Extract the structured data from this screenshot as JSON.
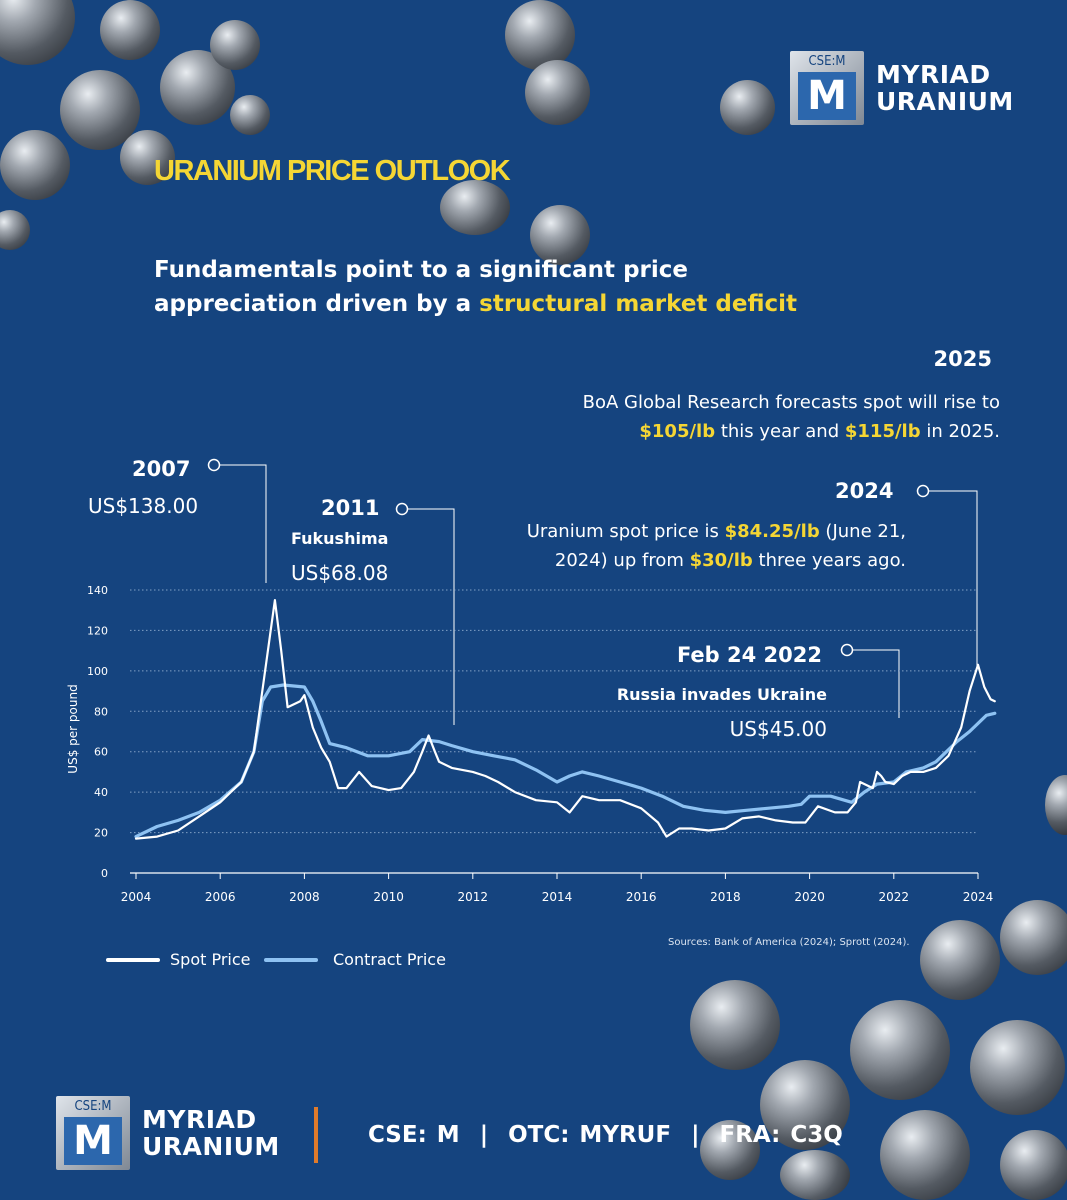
{
  "brand": {
    "ticker_box": "CSE:M",
    "box_letter": "M",
    "name_line1": "MYRIAD",
    "name_line2": "URANIUM"
  },
  "title": "URANIUM PRICE OUTLOOK",
  "subtitle": {
    "line1": "Fundamentals point to a significant price",
    "line2_plain": "appreciation driven by a ",
    "line2_highlight": "structural market deficit"
  },
  "annotations": {
    "y2025": {
      "year": "2025",
      "t1": "BoA Global Research forecasts spot will rise to",
      "p1": "$105/lb",
      "t2": " this year and ",
      "p2": "$115/lb",
      "t3": " in 2025."
    },
    "y2024": {
      "year": "2024",
      "t1": "Uranium spot price is ",
      "p1": "$84.25/lb",
      "t2": " (June 21,",
      "t3": "2024) up from ",
      "p2": "$30/lb",
      "t4": " three years ago."
    },
    "y2007": {
      "year": "2007",
      "price": "US$138.00"
    },
    "y2011": {
      "year": "2011",
      "event": "Fukushima",
      "price": "US$68.08"
    },
    "y2022": {
      "year": "Feb 24 2022",
      "event": "Russia invades Ukraine",
      "price": "US$45.00"
    }
  },
  "legend": {
    "spot": "Spot Price",
    "contract": "Contract Price"
  },
  "sources": "Sources: Bank of America (2024); Sprott (2024).",
  "footer": {
    "tickers": "CSE: M  |  OTC: MYRUF  |  FRA: C3Q"
  },
  "colors": {
    "background": "#15447f",
    "accent_yellow": "#f5d634",
    "spot_line": "#ffffff",
    "contract_line": "#8ec2f2",
    "separator": "#e07b2b"
  },
  "chart_data": {
    "type": "line",
    "ylabel": "US$ per pound",
    "xlim": [
      2004,
      2024
    ],
    "ylim": [
      0,
      140
    ],
    "x_ticks": [
      "2004",
      "2006",
      "2008",
      "2010",
      "2012",
      "2014",
      "2016",
      "2018",
      "2020",
      "2022",
      "2024"
    ],
    "y_ticks": [
      "0",
      "20",
      "40",
      "60",
      "80",
      "100",
      "120",
      "140"
    ],
    "grid": "horizontal dotted",
    "series": [
      {
        "name": "Spot Price",
        "color": "#ffffff",
        "points": [
          [
            2004.0,
            17
          ],
          [
            2004.5,
            18
          ],
          [
            2005.0,
            21
          ],
          [
            2005.5,
            28
          ],
          [
            2006.0,
            35
          ],
          [
            2006.5,
            45
          ],
          [
            2006.8,
            60
          ],
          [
            2007.0,
            90
          ],
          [
            2007.2,
            120
          ],
          [
            2007.3,
            135
          ],
          [
            2007.45,
            110
          ],
          [
            2007.6,
            82
          ],
          [
            2007.9,
            85
          ],
          [
            2008.0,
            88
          ],
          [
            2008.2,
            72
          ],
          [
            2008.4,
            62
          ],
          [
            2008.6,
            55
          ],
          [
            2008.8,
            42
          ],
          [
            2009.0,
            42
          ],
          [
            2009.3,
            50
          ],
          [
            2009.6,
            43
          ],
          [
            2010.0,
            41
          ],
          [
            2010.3,
            42
          ],
          [
            2010.6,
            50
          ],
          [
            2010.8,
            60
          ],
          [
            2010.95,
            68
          ],
          [
            2011.1,
            60
          ],
          [
            2011.2,
            55
          ],
          [
            2011.5,
            52
          ],
          [
            2012.0,
            50
          ],
          [
            2012.3,
            48
          ],
          [
            2012.6,
            45
          ],
          [
            2013.0,
            40
          ],
          [
            2013.5,
            36
          ],
          [
            2014.0,
            35
          ],
          [
            2014.3,
            30
          ],
          [
            2014.6,
            38
          ],
          [
            2015.0,
            36
          ],
          [
            2015.5,
            36
          ],
          [
            2016.0,
            32
          ],
          [
            2016.4,
            25
          ],
          [
            2016.6,
            18
          ],
          [
            2016.9,
            22
          ],
          [
            2017.2,
            22
          ],
          [
            2017.6,
            21
          ],
          [
            2018.0,
            22
          ],
          [
            2018.4,
            27
          ],
          [
            2018.8,
            28
          ],
          [
            2019.2,
            26
          ],
          [
            2019.6,
            25
          ],
          [
            2019.9,
            25
          ],
          [
            2020.2,
            33
          ],
          [
            2020.6,
            30
          ],
          [
            2020.9,
            30
          ],
          [
            2021.1,
            35
          ],
          [
            2021.2,
            45
          ],
          [
            2021.5,
            42
          ],
          [
            2021.6,
            50
          ],
          [
            2021.7,
            48
          ],
          [
            2021.8,
            45
          ],
          [
            2022.0,
            44
          ],
          [
            2022.2,
            48
          ],
          [
            2022.4,
            50
          ],
          [
            2022.7,
            50
          ],
          [
            2023.0,
            52
          ],
          [
            2023.3,
            58
          ],
          [
            2023.6,
            72
          ],
          [
            2023.8,
            90
          ],
          [
            2024.0,
            103
          ],
          [
            2024.15,
            92
          ],
          [
            2024.3,
            86
          ],
          [
            2024.4,
            85
          ]
        ]
      },
      {
        "name": "Contract Price",
        "color": "#8ec2f2",
        "points": [
          [
            2004.0,
            18
          ],
          [
            2004.5,
            23
          ],
          [
            2005.0,
            26
          ],
          [
            2005.5,
            30
          ],
          [
            2006.0,
            36
          ],
          [
            2006.5,
            45
          ],
          [
            2006.8,
            60
          ],
          [
            2007.0,
            85
          ],
          [
            2007.2,
            92
          ],
          [
            2007.5,
            93
          ],
          [
            2008.0,
            92
          ],
          [
            2008.2,
            85
          ],
          [
            2008.4,
            75
          ],
          [
            2008.6,
            64
          ],
          [
            2009.0,
            62
          ],
          [
            2009.5,
            58
          ],
          [
            2010.0,
            58
          ],
          [
            2010.5,
            60
          ],
          [
            2010.8,
            66
          ],
          [
            2011.2,
            65
          ],
          [
            2011.5,
            63
          ],
          [
            2012.0,
            60
          ],
          [
            2012.5,
            58
          ],
          [
            2013.0,
            56
          ],
          [
            2013.5,
            51
          ],
          [
            2014.0,
            45
          ],
          [
            2014.3,
            48
          ],
          [
            2014.6,
            50
          ],
          [
            2015.0,
            48
          ],
          [
            2015.5,
            45
          ],
          [
            2016.0,
            42
          ],
          [
            2016.5,
            38
          ],
          [
            2017.0,
            33
          ],
          [
            2017.5,
            31
          ],
          [
            2018.0,
            30
          ],
          [
            2018.5,
            31
          ],
          [
            2019.0,
            32
          ],
          [
            2019.5,
            33
          ],
          [
            2019.8,
            34
          ],
          [
            2020.0,
            38
          ],
          [
            2020.5,
            38
          ],
          [
            2021.0,
            35
          ],
          [
            2021.3,
            40
          ],
          [
            2021.6,
            44
          ],
          [
            2022.0,
            45
          ],
          [
            2022.3,
            50
          ],
          [
            2022.7,
            52
          ],
          [
            2023.0,
            55
          ],
          [
            2023.5,
            65
          ],
          [
            2023.8,
            70
          ],
          [
            2024.2,
            78
          ],
          [
            2024.4,
            79
          ]
        ]
      }
    ]
  }
}
